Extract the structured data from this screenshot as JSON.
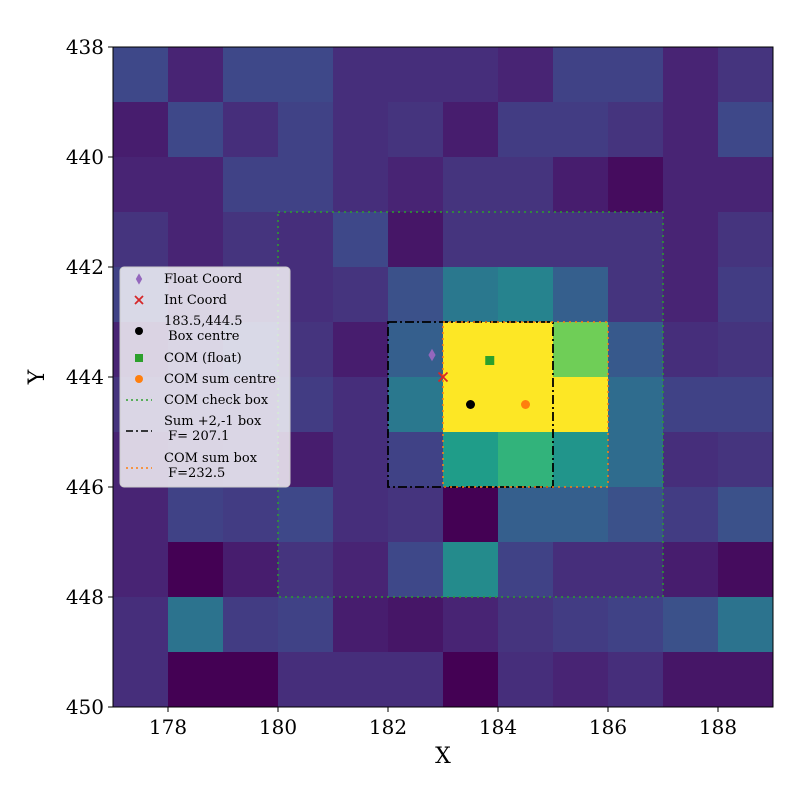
{
  "chart_data": {
    "type": "heatmap",
    "xlabel": "X",
    "ylabel": "Y",
    "xlim": [
      177,
      189
    ],
    "ylim": [
      450,
      438
    ],
    "x_ticks": [
      178,
      180,
      182,
      184,
      186,
      188
    ],
    "y_ticks": [
      438,
      440,
      442,
      444,
      446,
      448,
      450
    ],
    "grid": false,
    "legend_position": "left",
    "colormap": "viridis",
    "x_start": 177,
    "y_start": 438,
    "grid_values": [
      [
        0.22,
        0.1,
        0.22,
        0.22,
        0.13,
        0.13,
        0.13,
        0.1,
        0.2,
        0.2,
        0.1,
        0.15
      ],
      [
        0.08,
        0.22,
        0.13,
        0.2,
        0.13,
        0.15,
        0.08,
        0.18,
        0.18,
        0.15,
        0.1,
        0.22
      ],
      [
        0.1,
        0.1,
        0.2,
        0.2,
        0.13,
        0.1,
        0.15,
        0.15,
        0.08,
        0.03,
        0.1,
        0.1
      ],
      [
        0.15,
        0.1,
        0.15,
        0.13,
        0.22,
        0.06,
        0.15,
        0.15,
        0.15,
        0.15,
        0.1,
        0.15
      ],
      [
        0.2,
        0.13,
        0.13,
        0.13,
        0.15,
        0.25,
        0.4,
        0.45,
        0.3,
        0.15,
        0.1,
        0.18
      ],
      [
        0.1,
        0.15,
        0.2,
        0.15,
        0.08,
        0.3,
        1.0,
        1.0,
        0.78,
        0.28,
        0.13,
        0.15
      ],
      [
        0.15,
        0.15,
        0.15,
        0.18,
        0.13,
        0.4,
        1.0,
        1.0,
        1.0,
        0.35,
        0.2,
        0.2
      ],
      [
        0.1,
        0.13,
        0.15,
        0.08,
        0.13,
        0.2,
        0.55,
        0.65,
        0.52,
        0.35,
        0.13,
        0.15
      ],
      [
        0.1,
        0.2,
        0.18,
        0.22,
        0.13,
        0.15,
        0.0,
        0.3,
        0.3,
        0.25,
        0.18,
        0.25
      ],
      [
        0.1,
        0.0,
        0.08,
        0.15,
        0.1,
        0.22,
        0.48,
        0.2,
        0.13,
        0.13,
        0.08,
        0.03
      ],
      [
        0.13,
        0.38,
        0.18,
        0.2,
        0.08,
        0.06,
        0.1,
        0.15,
        0.18,
        0.2,
        0.25,
        0.38
      ],
      [
        0.13,
        0.0,
        0.0,
        0.13,
        0.13,
        0.13,
        0.0,
        0.13,
        0.1,
        0.13,
        0.06,
        0.06
      ]
    ],
    "markers": [
      {
        "name": "Float Coord",
        "x": 182.8,
        "y": 443.6,
        "shape": "diamond",
        "color": "#9467bd"
      },
      {
        "name": "Int Coord",
        "x": 183.0,
        "y": 444.0,
        "shape": "x",
        "color": "#d62728"
      },
      {
        "name": "183.5,444.5\n Box centre",
        "x": 183.5,
        "y": 444.5,
        "shape": "circle",
        "color": "#000000"
      },
      {
        "name": "COM (float)",
        "x": 183.85,
        "y": 443.7,
        "shape": "square",
        "color": "#2ca02c"
      },
      {
        "name": "COM sum centre",
        "x": 184.5,
        "y": 444.5,
        "shape": "circle",
        "color": "#ff7f0e"
      }
    ],
    "boxes": [
      {
        "name": "COM check box",
        "x0": 180,
        "x1": 187,
        "y0": 441,
        "y1": 448,
        "style": "dotted",
        "color": "#2ca02c"
      },
      {
        "name": "Sum +2,-1 box\n F= 207.1",
        "x0": 182,
        "x1": 185,
        "y0": 443,
        "y1": 446,
        "style": "dashdot",
        "color": "#000000"
      },
      {
        "name": "COM sum box\n F=232.5",
        "x0": 183,
        "x1": 186,
        "y0": 443,
        "y1": 446,
        "style": "dotted",
        "color": "#ff7f0e"
      }
    ],
    "legend": [
      {
        "label": "Float Coord",
        "symbol": "diamond",
        "color": "#9467bd"
      },
      {
        "label": "Int Coord",
        "symbol": "x",
        "color": "#d62728"
      },
      {
        "label": "183.5,444.5\n Box centre",
        "symbol": "circle",
        "color": "#000000"
      },
      {
        "label": "COM (float)",
        "symbol": "square",
        "color": "#2ca02c"
      },
      {
        "label": "COM sum centre",
        "symbol": "circle",
        "color": "#ff7f0e"
      },
      {
        "label": "COM check box",
        "symbol": "dotted-line",
        "color": "#2ca02c"
      },
      {
        "label": "Sum +2,-1 box\n F= 207.1",
        "symbol": "dashdot-line",
        "color": "#000000"
      },
      {
        "label": "COM sum box\n F=232.5",
        "symbol": "dotted-line",
        "color": "#ff7f0e"
      }
    ]
  }
}
